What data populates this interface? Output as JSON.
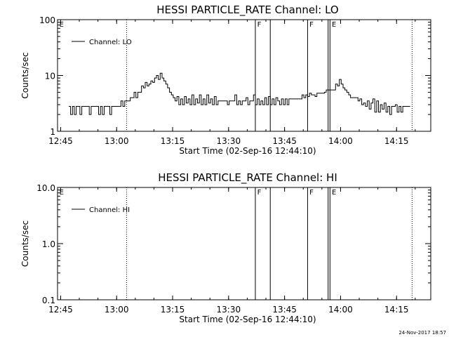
{
  "date_stamp": "24-Nov-2017 18:57",
  "chart_data": [
    {
      "type": "line",
      "title": "HESSI PARTICLE_RATE Channel: LO",
      "xlabel": "Start Time (02-Sep-16 12:44:10)",
      "ylabel": "Counts/sec",
      "y_scale": "log",
      "ylim": [
        1,
        100
      ],
      "y_ticks": [
        1,
        10,
        100
      ],
      "y_tick_labels": [
        "1",
        "10",
        "100"
      ],
      "xlim": [
        "12:44:10",
        "14:24:10"
      ],
      "x_ticks": [
        "12:45",
        "13:00",
        "13:15",
        "13:30",
        "13:45",
        "14:00",
        "14:15"
      ],
      "legend": {
        "label": "Channel: LO",
        "position": "top-left"
      },
      "color": "#000000",
      "grid": false,
      "dotted_lines": [
        "13:02:40",
        "14:19:10"
      ],
      "solid_lines": [
        "13:37:10",
        "13:41:10",
        "13:51:10",
        "13:56:40",
        "13:57:10"
      ],
      "flags": [
        {
          "label": "E",
          "time": "12:44:40"
        },
        {
          "label": "F",
          "time": "13:37:40"
        },
        {
          "label": "F",
          "time": "13:51:40"
        },
        {
          "label": "E",
          "time": "13:57:40"
        }
      ],
      "series": [
        {
          "name": "Channel: LO",
          "x": [
            "12:47:10",
            "12:47:40",
            "12:48:10",
            "12:48:40",
            "12:49:10",
            "12:49:40",
            "12:50:10",
            "12:50:40",
            "12:51:10",
            "12:51:40",
            "12:52:10",
            "12:52:40",
            "12:53:10",
            "12:53:40",
            "12:54:10",
            "12:54:40",
            "12:55:10",
            "12:55:40",
            "12:56:10",
            "12:56:40",
            "12:57:10",
            "12:57:40",
            "12:58:10",
            "12:58:40",
            "12:59:10",
            "12:59:40",
            "13:00:10",
            "13:00:40",
            "13:01:10",
            "13:01:40",
            "13:02:10",
            "13:02:40",
            "13:03:10",
            "13:03:40",
            "13:04:10",
            "13:04:40",
            "13:05:10",
            "13:05:40",
            "13:06:10",
            "13:06:40",
            "13:07:10",
            "13:07:40",
            "13:08:10",
            "13:08:40",
            "13:09:10",
            "13:09:40",
            "13:10:10",
            "13:10:40",
            "13:11:10",
            "13:11:40",
            "13:12:10",
            "13:12:40",
            "13:13:10",
            "13:13:40",
            "13:14:10",
            "13:14:40",
            "13:15:10",
            "13:15:40",
            "13:16:10",
            "13:16:40",
            "13:17:10",
            "13:17:40",
            "13:18:10",
            "13:18:40",
            "13:19:10",
            "13:19:40",
            "13:20:10",
            "13:20:40",
            "13:21:10",
            "13:21:40",
            "13:22:10",
            "13:22:40",
            "13:23:10",
            "13:23:40",
            "13:24:10",
            "13:24:40",
            "13:25:10",
            "13:25:40",
            "13:26:10",
            "13:26:40",
            "13:27:10",
            "13:27:40",
            "13:28:10",
            "13:28:40",
            "13:29:10",
            "13:29:40",
            "13:30:10",
            "13:30:40",
            "13:31:10",
            "13:31:40",
            "13:32:10",
            "13:32:40",
            "13:33:10",
            "13:33:40",
            "13:34:10",
            "13:34:40",
            "13:35:10",
            "13:35:40",
            "13:36:10",
            "13:36:40",
            "13:37:10",
            "13:37:40",
            "13:38:10",
            "13:38:40",
            "13:39:10",
            "13:39:40",
            "13:40:10",
            "13:40:40",
            "13:41:10",
            "13:41:40",
            "13:42:10",
            "13:42:40",
            "13:43:10",
            "13:43:40",
            "13:44:10",
            "13:44:40",
            "13:45:10",
            "13:45:40",
            "13:46:10",
            "13:46:40",
            "13:47:10",
            "13:47:40",
            "13:48:10",
            "13:48:40",
            "13:49:10",
            "13:49:40",
            "13:50:10",
            "13:50:40",
            "13:51:10",
            "13:51:40",
            "13:52:10",
            "13:52:40",
            "13:53:10",
            "13:53:40",
            "13:54:10",
            "13:54:40",
            "13:55:10",
            "13:55:40",
            "13:56:10",
            "13:56:40",
            "13:57:10",
            "13:57:40",
            "13:58:10",
            "13:58:40",
            "13:59:10",
            "13:59:40",
            "14:00:10",
            "14:00:40",
            "14:01:10",
            "14:01:40",
            "14:02:10",
            "14:02:40",
            "14:03:10",
            "14:03:40",
            "14:04:10",
            "14:04:40",
            "14:05:10",
            "14:05:40",
            "14:06:10",
            "14:06:40",
            "14:07:10",
            "14:07:40",
            "14:08:10",
            "14:08:40",
            "14:09:10",
            "14:09:40",
            "14:10:10",
            "14:10:40",
            "14:11:10",
            "14:11:40",
            "14:12:10",
            "14:12:40",
            "14:13:10",
            "14:13:40",
            "14:14:10",
            "14:14:40",
            "14:15:10",
            "14:15:40",
            "14:16:10",
            "14:16:40",
            "14:17:10",
            "14:17:40",
            "14:18:10"
          ],
          "y": [
            2.8,
            2,
            2.8,
            2,
            2.8,
            2.8,
            2,
            2.8,
            2.8,
            2.8,
            2.8,
            2,
            2.8,
            2.8,
            2.8,
            2.8,
            2,
            2.8,
            2,
            2.8,
            2.8,
            2.8,
            2,
            2.8,
            2.8,
            2.8,
            2.8,
            2.8,
            3.5,
            2.8,
            3.5,
            3.5,
            3.5,
            4,
            4,
            5,
            4,
            5,
            5,
            6.5,
            6,
            7.5,
            6.5,
            7,
            8,
            7.5,
            9,
            10,
            8.5,
            11,
            9,
            8,
            7,
            6,
            5,
            4.5,
            4,
            3.5,
            4.2,
            3,
            3.8,
            3,
            4.2,
            3.2,
            3.8,
            3,
            4.5,
            3,
            3.8,
            3.2,
            4.5,
            3,
            3.8,
            3,
            4.5,
            3.2,
            3.8,
            3,
            4.2,
            3,
            3.5,
            3.5,
            3.5,
            3.5,
            3.5,
            3,
            3.5,
            3.5,
            3.5,
            4.5,
            3,
            3.5,
            3,
            3.5,
            3.5,
            4,
            3,
            3.5,
            3.5,
            4.5,
            3,
            3.8,
            3,
            3.5,
            3,
            4,
            3,
            4.2,
            3,
            3.8,
            3,
            4,
            3.5,
            3,
            3.8,
            3,
            3.8,
            3,
            3.8,
            3.8,
            3.8,
            3.8,
            3.8,
            3.8,
            3.8,
            4.5,
            4,
            4.5,
            4.2,
            4.8,
            4.5,
            4.5,
            4.2,
            4.8,
            4.8,
            4.8,
            4.8,
            5,
            5.5,
            5.5,
            5.5,
            5.5,
            5.5,
            7,
            6.5,
            8.5,
            7,
            6,
            5.5,
            5,
            4.5,
            4,
            4,
            4,
            4,
            3.5,
            3.8,
            3,
            3.2,
            2.8,
            3.5,
            2.5,
            3.2,
            3.8,
            2.2,
            3.5,
            2.2,
            3,
            2.5,
            3.2,
            2.2,
            2.8,
            2,
            2.8,
            2.8,
            3,
            2.2,
            2.8,
            2.2,
            2.8,
            2.8,
            2.8,
            2.8
          ]
        }
      ]
    },
    {
      "type": "line",
      "title": "HESSI PARTICLE_RATE Channel: HI",
      "xlabel": "Start Time (02-Sep-16 12:44:10)",
      "ylabel": "Counts/sec",
      "y_scale": "log",
      "ylim": [
        0.1,
        10
      ],
      "y_ticks": [
        0.1,
        1,
        10
      ],
      "y_tick_labels": [
        "0.1",
        "1.0",
        "10.0"
      ],
      "xlim": [
        "12:44:10",
        "14:24:10"
      ],
      "x_ticks": [
        "12:45",
        "13:00",
        "13:15",
        "13:30",
        "13:45",
        "14:00",
        "14:15"
      ],
      "legend": {
        "label": "Channel: HI",
        "position": "top-left"
      },
      "color": "#000000",
      "grid": false,
      "dotted_lines": [
        "13:02:40",
        "14:19:10"
      ],
      "solid_lines": [
        "13:37:10",
        "13:41:10",
        "13:51:10",
        "13:56:40",
        "13:57:10"
      ],
      "flags": [
        {
          "label": "E",
          "time": "12:44:40"
        },
        {
          "label": "F",
          "time": "13:37:40"
        },
        {
          "label": "F",
          "time": "13:51:40"
        },
        {
          "label": "E",
          "time": "13:57:40"
        }
      ],
      "series": [
        {
          "name": "Channel: HI",
          "x": [],
          "y": []
        }
      ]
    }
  ]
}
